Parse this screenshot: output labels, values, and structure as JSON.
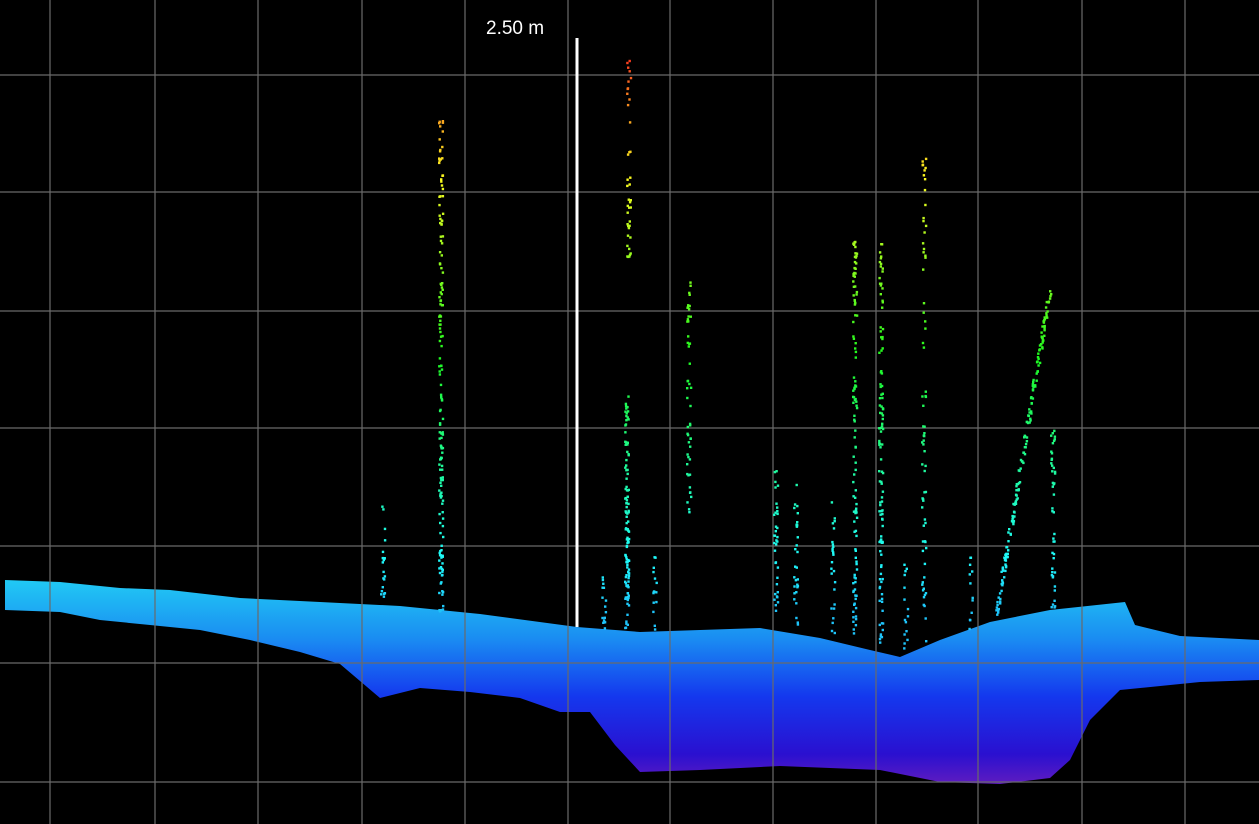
{
  "scale_bar": {
    "label": "2.50 m"
  }
}
